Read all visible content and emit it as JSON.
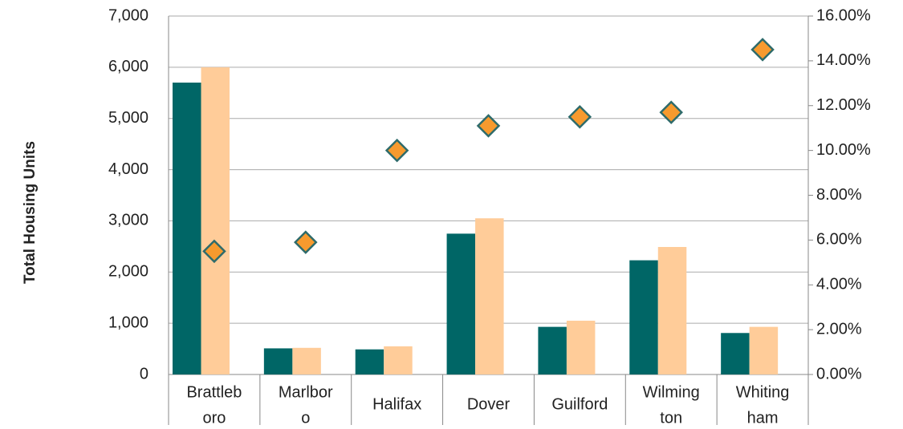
{
  "chart_data": {
    "type": "bar",
    "y_label": "Total Housing Units",
    "categories": [
      [
        "Brattleb",
        "oro"
      ],
      [
        "Marlbor",
        "o"
      ],
      [
        "Halifax"
      ],
      [
        "Dover"
      ],
      [
        "Guilford"
      ],
      [
        "Wilming",
        "ton"
      ],
      [
        "Whiting",
        "ham"
      ]
    ],
    "series": [
      {
        "color": "#006666",
        "values": [
          5700,
          510,
          490,
          2750,
          930,
          2230,
          810
        ]
      },
      {
        "color": "#ffcc99",
        "values": [
          6000,
          520,
          550,
          3050,
          1050,
          2490,
          930
        ]
      },
      {
        "type": "scatter",
        "axis": "y2",
        "color": "#f79a2e",
        "edge_color": "#2e6b6b",
        "values": [
          5.5,
          5.9,
          10.0,
          11.1,
          11.5,
          11.7,
          14.5
        ]
      }
    ],
    "ylim": [
      0,
      7000
    ],
    "yticks": [
      0,
      {
        "value": 1000,
        "label": "1,000"
      },
      {
        "value": 2000,
        "label": "2,000"
      },
      {
        "value": 3000,
        "label": "3,000"
      },
      {
        "value": 4000,
        "label": "4,000"
      },
      {
        "value": 5000,
        "label": "5,000"
      },
      {
        "value": 6000,
        "label": "6,000"
      },
      {
        "value": 7000,
        "label": "7,000"
      }
    ],
    "y2lim": [
      0,
      16
    ],
    "y2ticks": [
      {
        "value": 0,
        "label": "0.00%"
      },
      {
        "value": 2,
        "label": "2.00%"
      },
      {
        "value": 4,
        "label": "4.00%"
      },
      {
        "value": 6,
        "label": "6.00%"
      },
      {
        "value": 8,
        "label": "8.00%"
      },
      {
        "value": 10,
        "label": "10.00%"
      },
      {
        "value": 12,
        "label": "12.00%"
      },
      {
        "value": 14,
        "label": "14.00%"
      },
      {
        "value": 16,
        "label": "16.00%"
      }
    ],
    "grid": true
  }
}
